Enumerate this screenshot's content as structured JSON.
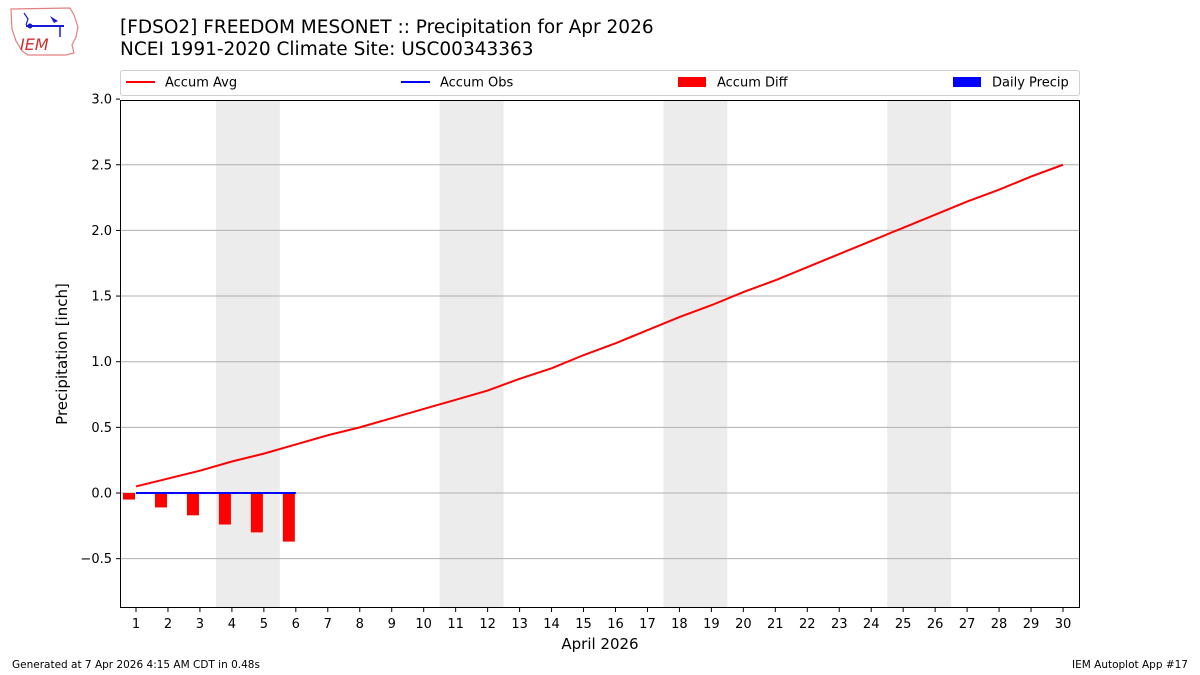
{
  "logo": {
    "text": "IEM"
  },
  "title": {
    "line1": "[FDSO2] FREEDOM MESONET :: Precipitation for Apr 2026",
    "line2": "NCEI 1991-2020 Climate Site: USC00343363"
  },
  "footer": {
    "left": "Generated at 7 Apr 2026 4:15 AM CDT in 0.48s",
    "right": "IEM Autoplot App #17"
  },
  "colors": {
    "accum_avg": "#ff0000",
    "accum_obs": "#0000ff",
    "accum_diff": "#ff0000",
    "daily_precip": "#0000ff",
    "weekend_shade": "#ececec",
    "grid": "#b0b0b0"
  },
  "chart_data": {
    "type": "line",
    "title": "[FDSO2] FREEDOM MESONET :: Precipitation for Apr 2026",
    "subtitle": "NCEI 1991-2020 Climate Site: USC00343363",
    "xlabel": "April 2026",
    "ylabel": "Precipitation [inch]",
    "ylim": [
      -0.87,
      3.0
    ],
    "yticks": [
      "−0.5",
      "0.0",
      "0.5",
      "1.0",
      "1.5",
      "2.0",
      "2.5",
      "3.0"
    ],
    "ytick_values": [
      -0.5,
      0.0,
      0.5,
      1.0,
      1.5,
      2.0,
      2.5,
      3.0
    ],
    "x": [
      1,
      2,
      3,
      4,
      5,
      6,
      7,
      8,
      9,
      10,
      11,
      12,
      13,
      14,
      15,
      16,
      17,
      18,
      19,
      20,
      21,
      22,
      23,
      24,
      25,
      26,
      27,
      28,
      29,
      30
    ],
    "grid": "horizontal",
    "legend_position": "top",
    "legend": [
      "Accum Avg",
      "Accum Obs",
      "Accum Diff",
      "Daily Precip"
    ],
    "shaded_days": [
      [
        4,
        5
      ],
      [
        11,
        12
      ],
      [
        18,
        19
      ],
      [
        25,
        26
      ]
    ],
    "series": [
      {
        "name": "Accum Avg",
        "type": "line",
        "color": "#ff0000",
        "values": [
          0.05,
          0.11,
          0.17,
          0.24,
          0.3,
          0.37,
          0.44,
          0.5,
          0.57,
          0.64,
          0.71,
          0.78,
          0.87,
          0.95,
          1.05,
          1.14,
          1.24,
          1.34,
          1.43,
          1.53,
          1.62,
          1.72,
          1.82,
          1.92,
          2.02,
          2.12,
          2.22,
          2.31,
          2.41,
          2.5
        ]
      },
      {
        "name": "Accum Obs",
        "type": "line",
        "color": "#0000ff",
        "x": [
          1,
          2,
          3,
          4,
          5,
          6
        ],
        "values": [
          0.0,
          0.0,
          0.0,
          0.0,
          0.0,
          0.0
        ]
      },
      {
        "name": "Accum Diff",
        "type": "bar",
        "color": "#ff0000",
        "x": [
          1,
          2,
          3,
          4,
          5,
          6
        ],
        "values": [
          -0.05,
          -0.11,
          -0.17,
          -0.24,
          -0.3,
          -0.37
        ]
      },
      {
        "name": "Daily Precip",
        "type": "bar",
        "color": "#0000ff",
        "x": [
          1,
          2,
          3,
          4,
          5,
          6
        ],
        "values": [
          0,
          0,
          0,
          0,
          0,
          0
        ]
      }
    ]
  }
}
